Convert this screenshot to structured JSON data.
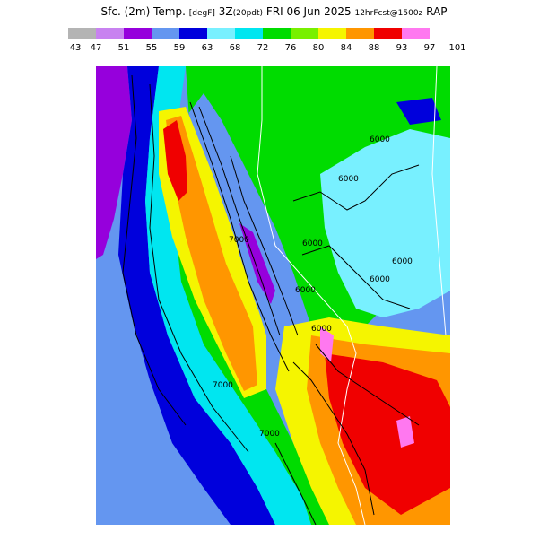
{
  "header": {
    "title_main": "Sfc. (2m) Temp.",
    "title_units": "[degF]",
    "title_run": "3Z",
    "title_run_note": "(20pdt)",
    "title_date": "FRI 06 Jun 2025",
    "title_fcst": "12hrFcst@1500z",
    "title_model": "RAP"
  },
  "legend": {
    "colors": [
      "#b4b4b4",
      "#c882f0",
      "#9600dc",
      "#6496f0",
      "#0000dc",
      "#78f0ff",
      "#00e6f0",
      "#00dc00",
      "#78f000",
      "#f5f500",
      "#ff9600",
      "#f00000",
      "#ff78f0"
    ],
    "ticks": [
      "43",
      "47",
      "51",
      "55",
      "59",
      "63",
      "68",
      "72",
      "76",
      "80",
      "84",
      "88",
      "93",
      "97",
      "101"
    ]
  },
  "map": {
    "background": "#6496f0",
    "contour_labels": [
      "6000",
      "6000",
      "6000",
      "6000",
      "7000",
      "6000",
      "6000",
      "6000",
      "7000",
      "7000"
    ]
  }
}
